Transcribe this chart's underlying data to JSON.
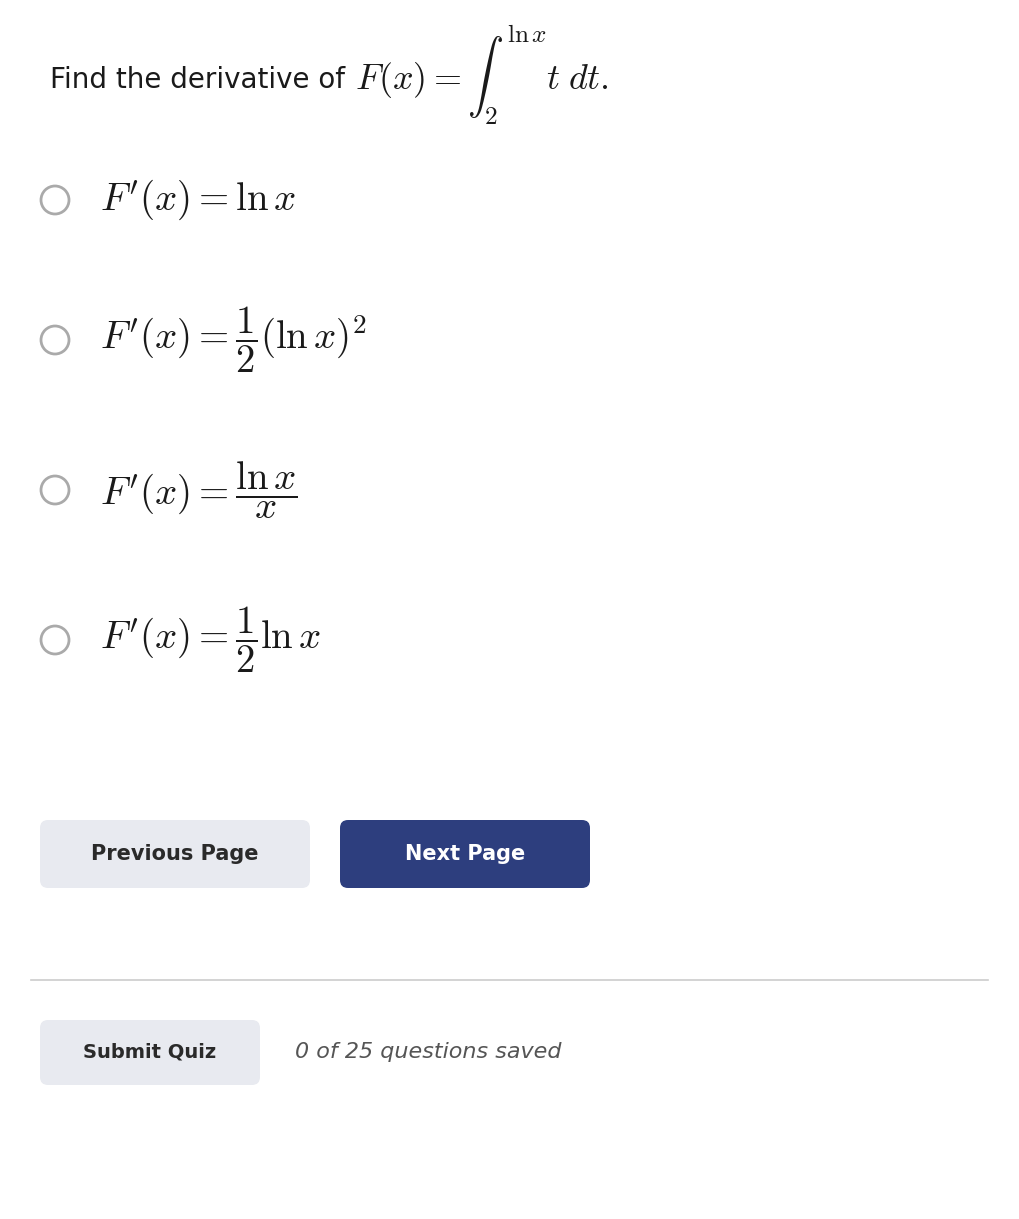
{
  "bg_color": "#ffffff",
  "text_color": "#1a1a1a",
  "question_text": "Find the derivative of ",
  "question_math": "$F(x) = \\int_2^{\\ln x} t\\, dt.$",
  "options": [
    "$F'(x) = \\ln x$",
    "$F'(x) = \\dfrac{1}{2}(\\ln x)^2$",
    "$F'(x) = \\dfrac{\\ln x}{x}$",
    "$F'(x) = \\dfrac{1}{2}\\ln x$"
  ],
  "prev_btn_text": "Previous Page",
  "next_btn_text": "Next Page",
  "submit_btn_text": "Submit Quiz",
  "footer_text": "0 of 25 questions saved",
  "prev_btn_color": "#e8eaf0",
  "next_btn_color": "#2d3e7e",
  "submit_btn_color": "#e8eaf0",
  "prev_btn_text_color": "#2a2a2a",
  "next_btn_text_color": "#ffffff",
  "submit_btn_text_color": "#2a2a2a",
  "footer_text_color": "#555555",
  "circle_color": "#aaaaaa",
  "divider_color": "#cccccc"
}
